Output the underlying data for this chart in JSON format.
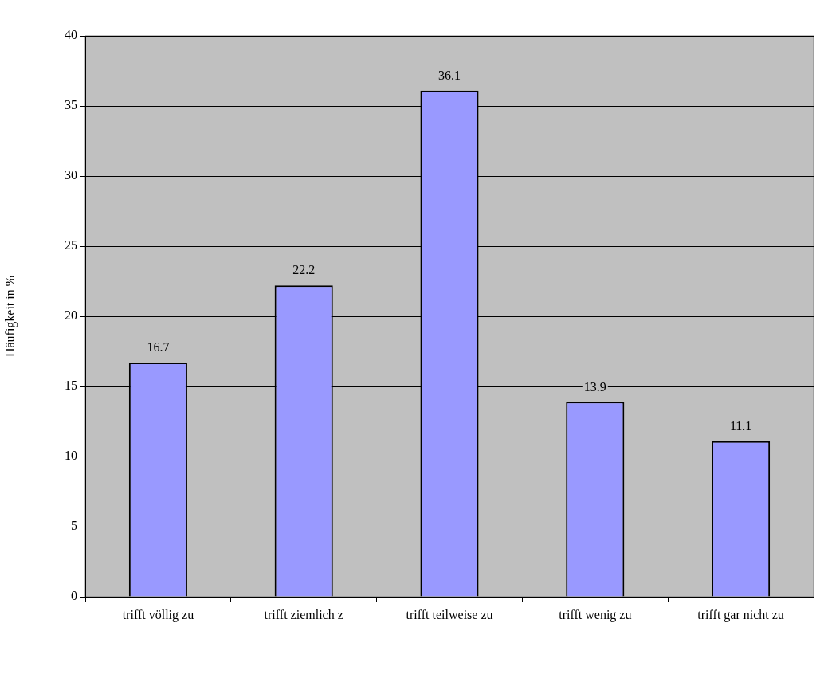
{
  "chart_data": {
    "type": "bar",
    "ylabel": "Häufigkeit in %",
    "categories": [
      "trifft völlig zu",
      "trifft ziemlich z",
      "trifft teilweise zu",
      "trifft wenig zu",
      "trifft gar nicht zu"
    ],
    "values": [
      16.7,
      22.2,
      36.1,
      13.9,
      11.1
    ],
    "color": "#9999ff",
    "ylim": [
      0,
      40
    ],
    "yticks": [
      0,
      5,
      10,
      15,
      20,
      25,
      30,
      35,
      40
    ],
    "grid": "y",
    "legend": false,
    "data_labels": true
  }
}
